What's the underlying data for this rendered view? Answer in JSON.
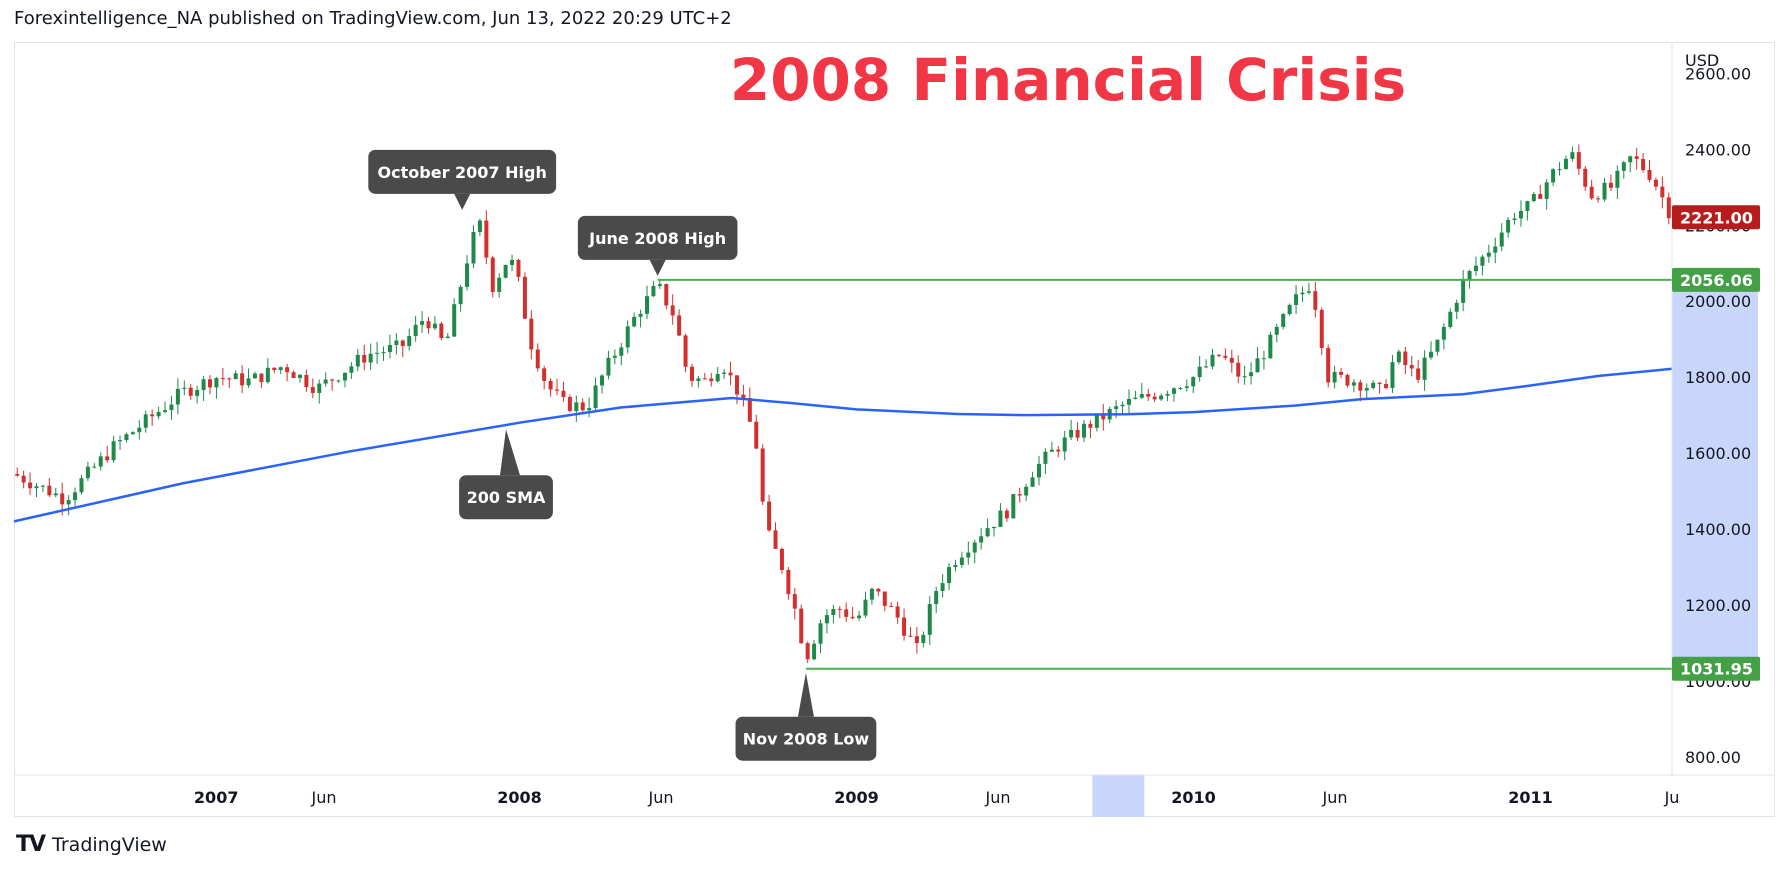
{
  "header": {
    "publisher_line": "Forexintelligence_NA published on TradingView.com, Jun 13, 2022 20:29 UTC+2"
  },
  "footer": {
    "logo_mark": "TV",
    "brand_name": "TradingView"
  },
  "colors": {
    "up": "#26a69a",
    "up_body": "#2e8b57",
    "down": "#d32f2f",
    "sma": "#2962ff",
    "level": "#4caf50",
    "title": "#f23645",
    "callout": "#4a4a4a",
    "price_tag": "#b71c1c",
    "highlight": "#c9d6fb"
  },
  "chart_data": {
    "type": "candlestick",
    "title": "2008 Financial Crisis",
    "currency_label": "USD",
    "y_ticks": [
      "2600.00",
      "2400.00",
      "2200.00",
      "2000.00",
      "1800.00",
      "1600.00",
      "1400.00",
      "1200.00",
      "1000.00",
      "800.00"
    ],
    "y_range": [
      760,
      2680
    ],
    "x_labels": [
      {
        "text": "2007",
        "bold": true,
        "t": 0.1
      },
      {
        "text": "Jun",
        "bold": false,
        "t": 0.42
      },
      {
        "text": "2008",
        "bold": true,
        "t": 1.0
      },
      {
        "text": "Jun",
        "bold": false,
        "t": 1.42
      },
      {
        "text": "2009",
        "bold": true,
        "t": 2.0
      },
      {
        "text": "Jun",
        "bold": false,
        "t": 2.42
      },
      {
        "text": "2010",
        "bold": true,
        "t": 3.0
      },
      {
        "text": "Jun",
        "bold": false,
        "t": 3.42
      },
      {
        "text": "2011",
        "bold": true,
        "t": 4.0
      },
      {
        "text": "Ju",
        "bold": false,
        "t": 4.42
      }
    ],
    "x_range_years": [
      -0.5,
      4.42
    ],
    "last_price": "2221.00",
    "levels": [
      {
        "label": "2056.06",
        "value": 2056.06,
        "start_t": 1.41
      },
      {
        "label": "1031.95",
        "value": 1031.95,
        "start_t": 1.85
      }
    ],
    "sma_label": "200 SMA",
    "sma": [
      [
        -0.5,
        1420
      ],
      [
        0.0,
        1520
      ],
      [
        0.5,
        1605
      ],
      [
        1.0,
        1680
      ],
      [
        1.3,
        1720
      ],
      [
        1.63,
        1745
      ],
      [
        1.8,
        1732
      ],
      [
        2.0,
        1715
      ],
      [
        2.3,
        1703
      ],
      [
        2.5,
        1700
      ],
      [
        2.8,
        1702
      ],
      [
        3.0,
        1708
      ],
      [
        3.3,
        1725
      ],
      [
        3.5,
        1742
      ],
      [
        3.8,
        1755
      ],
      [
        4.0,
        1778
      ],
      [
        4.2,
        1803
      ],
      [
        4.42,
        1822
      ]
    ],
    "annotations": [
      {
        "label": "October 2007 High",
        "t": 0.83,
        "value": 2230,
        "side": "above"
      },
      {
        "label": "June 2008 High",
        "t": 1.41,
        "value": 2056,
        "side": "above"
      },
      {
        "label": "200 SMA",
        "t": 0.96,
        "value": 1668,
        "side": "below"
      },
      {
        "label": "Nov 2008 Low",
        "t": 1.85,
        "value": 1032,
        "side": "below"
      }
    ],
    "price_path": [
      [
        -0.5,
        1545
      ],
      [
        -0.35,
        1480
      ],
      [
        -0.2,
        1620
      ],
      [
        0.0,
        1760
      ],
      [
        0.1,
        1800
      ],
      [
        0.2,
        1790
      ],
      [
        0.3,
        1830
      ],
      [
        0.4,
        1770
      ],
      [
        0.55,
        1860
      ],
      [
        0.65,
        1880
      ],
      [
        0.72,
        1960
      ],
      [
        0.78,
        1880
      ],
      [
        0.85,
        2130
      ],
      [
        0.88,
        2210
      ],
      [
        0.92,
        2040
      ],
      [
        0.97,
        2120
      ],
      [
        1.0,
        2040
      ],
      [
        1.03,
        1900
      ],
      [
        1.08,
        1780
      ],
      [
        1.13,
        1730
      ],
      [
        1.2,
        1720
      ],
      [
        1.25,
        1810
      ],
      [
        1.3,
        1890
      ],
      [
        1.35,
        1970
      ],
      [
        1.41,
        2040
      ],
      [
        1.46,
        1960
      ],
      [
        1.5,
        1800
      ],
      [
        1.55,
        1790
      ],
      [
        1.6,
        1840
      ],
      [
        1.65,
        1760
      ],
      [
        1.7,
        1640
      ],
      [
        1.73,
        1400
      ],
      [
        1.78,
        1300
      ],
      [
        1.82,
        1180
      ],
      [
        1.85,
        1060
      ],
      [
        1.9,
        1170
      ],
      [
        1.95,
        1190
      ],
      [
        2.0,
        1160
      ],
      [
        2.05,
        1240
      ],
      [
        2.12,
        1170
      ],
      [
        2.18,
        1080
      ],
      [
        2.24,
        1250
      ],
      [
        2.3,
        1330
      ],
      [
        2.38,
        1400
      ],
      [
        2.45,
        1450
      ],
      [
        2.52,
        1550
      ],
      [
        2.6,
        1620
      ],
      [
        2.7,
        1680
      ],
      [
        2.8,
        1730
      ],
      [
        2.9,
        1760
      ],
      [
        3.0,
        1800
      ],
      [
        3.08,
        1860
      ],
      [
        3.15,
        1790
      ],
      [
        3.22,
        1880
      ],
      [
        3.3,
        2000
      ],
      [
        3.35,
        2050
      ],
      [
        3.4,
        1800
      ],
      [
        3.48,
        1790
      ],
      [
        3.56,
        1760
      ],
      [
        3.6,
        1860
      ],
      [
        3.66,
        1800
      ],
      [
        3.72,
        1880
      ],
      [
        3.8,
        2050
      ],
      [
        3.88,
        2140
      ],
      [
        3.95,
        2230
      ],
      [
        4.0,
        2250
      ],
      [
        4.06,
        2330
      ],
      [
        4.12,
        2390
      ],
      [
        4.18,
        2280
      ],
      [
        4.24,
        2300
      ],
      [
        4.3,
        2380
      ],
      [
        4.36,
        2330
      ],
      [
        4.42,
        2221
      ]
    ]
  }
}
